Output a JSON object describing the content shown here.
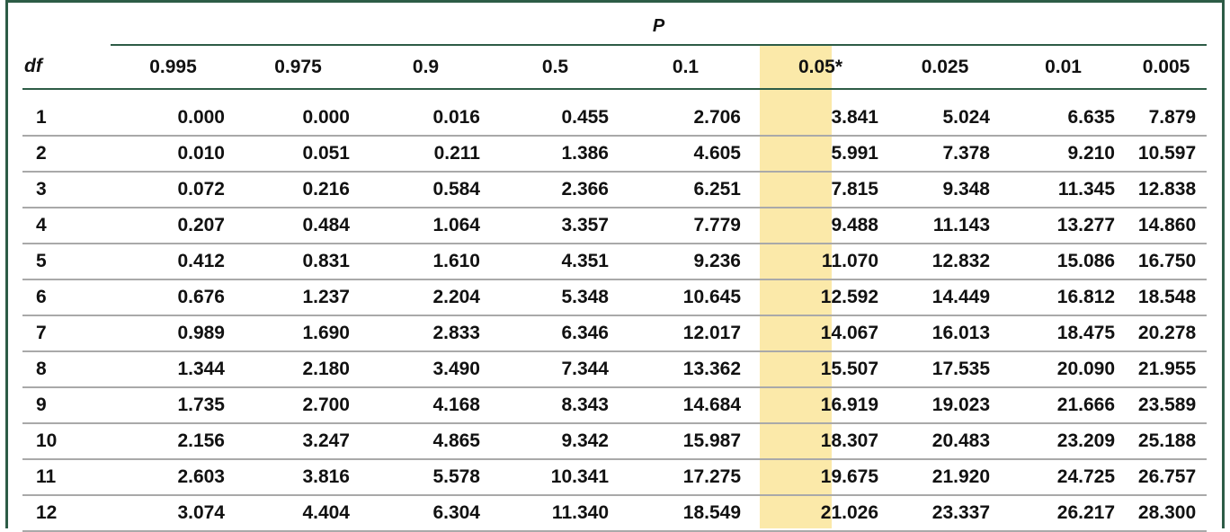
{
  "table": {
    "p_label": "P",
    "df_label": "df",
    "columns": [
      "0.995",
      "0.975",
      "0.9",
      "0.5",
      "0.1",
      "0.05*",
      "0.025",
      "0.01",
      "0.005"
    ],
    "highlight_column_index": 5,
    "highlight_color": "#fbe9a9",
    "rule_color": "#2d5c46",
    "rows": [
      {
        "df": "1",
        "values": [
          "0.000",
          "0.000",
          "0.016",
          "0.455",
          "2.706",
          "3.841",
          "5.024",
          "6.635",
          "7.879"
        ]
      },
      {
        "df": "2",
        "values": [
          "0.010",
          "0.051",
          "0.211",
          "1.386",
          "4.605",
          "5.991",
          "7.378",
          "9.210",
          "10.597"
        ]
      },
      {
        "df": "3",
        "values": [
          "0.072",
          "0.216",
          "0.584",
          "2.366",
          "6.251",
          "7.815",
          "9.348",
          "11.345",
          "12.838"
        ]
      },
      {
        "df": "4",
        "values": [
          "0.207",
          "0.484",
          "1.064",
          "3.357",
          "7.779",
          "9.488",
          "11.143",
          "13.277",
          "14.860"
        ]
      },
      {
        "df": "5",
        "values": [
          "0.412",
          "0.831",
          "1.610",
          "4.351",
          "9.236",
          "11.070",
          "12.832",
          "15.086",
          "16.750"
        ]
      },
      {
        "df": "6",
        "values": [
          "0.676",
          "1.237",
          "2.204",
          "5.348",
          "10.645",
          "12.592",
          "14.449",
          "16.812",
          "18.548"
        ]
      },
      {
        "df": "7",
        "values": [
          "0.989",
          "1.690",
          "2.833",
          "6.346",
          "12.017",
          "14.067",
          "16.013",
          "18.475",
          "20.278"
        ]
      },
      {
        "df": "8",
        "values": [
          "1.344",
          "2.180",
          "3.490",
          "7.344",
          "13.362",
          "15.507",
          "17.535",
          "20.090",
          "21.955"
        ]
      },
      {
        "df": "9",
        "values": [
          "1.735",
          "2.700",
          "4.168",
          "8.343",
          "14.684",
          "16.919",
          "19.023",
          "21.666",
          "23.589"
        ]
      },
      {
        "df": "10",
        "values": [
          "2.156",
          "3.247",
          "4.865",
          "9.342",
          "15.987",
          "18.307",
          "20.483",
          "23.209",
          "25.188"
        ]
      },
      {
        "df": "11",
        "values": [
          "2.603",
          "3.816",
          "5.578",
          "10.341",
          "17.275",
          "19.675",
          "21.920",
          "24.725",
          "26.757"
        ]
      },
      {
        "df": "12",
        "values": [
          "3.074",
          "4.404",
          "6.304",
          "11.340",
          "18.549",
          "21.026",
          "23.337",
          "26.217",
          "28.300"
        ]
      }
    ]
  }
}
